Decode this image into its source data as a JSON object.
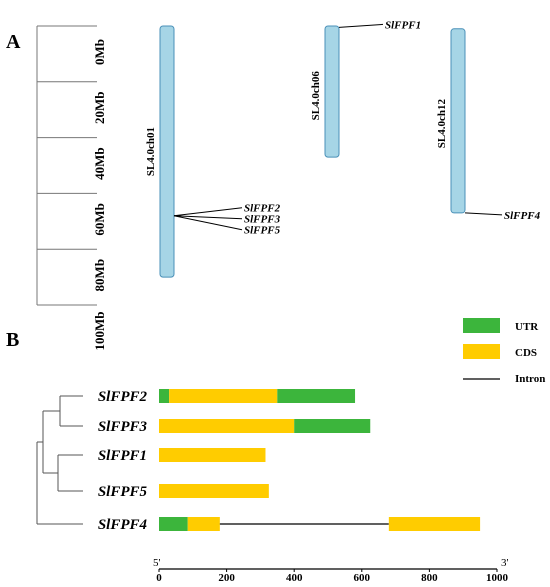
{
  "panel_a": {
    "label": "A",
    "scale": {
      "max_mb": 100,
      "ticks": [
        {
          "value": 0,
          "label": "0Mb"
        },
        {
          "value": 20,
          "label": "20Mb"
        },
        {
          "value": 40,
          "label": "40Mb"
        },
        {
          "value": 60,
          "label": "60Mb"
        },
        {
          "value": 80,
          "label": "80Mb"
        },
        {
          "value": 100,
          "label": "100Mb"
        }
      ]
    },
    "chromosome_color": "#a6d5e6",
    "chromosome_stroke": "#4a90b8",
    "chromosomes": [
      {
        "id": "ch01",
        "label": "SL4.0ch01",
        "length_mb": 90,
        "genes": [
          {
            "name": "SlFPF2",
            "position_mb": 68
          },
          {
            "name": "SlFPF3",
            "position_mb": 68
          },
          {
            "name": "SlFPF5",
            "position_mb": 68
          }
        ]
      },
      {
        "id": "ch06",
        "label": "SL4.0ch06",
        "length_mb": 47,
        "genes": [
          {
            "name": "SlFPF1",
            "position_mb": 0.5
          }
        ]
      },
      {
        "id": "ch12",
        "label": "SL4.0ch12",
        "length_mb": 66,
        "genes": [
          {
            "name": "SlFPF4",
            "position_mb": 66
          }
        ]
      }
    ]
  },
  "panel_b": {
    "label": "B",
    "legend": [
      {
        "key": "utr",
        "label": "UTR",
        "color": "#3cb53c"
      },
      {
        "key": "cds",
        "label": "CDS",
        "color": "#ffcc00"
      },
      {
        "key": "intron",
        "label": "Intron",
        "color": "#000000"
      }
    ],
    "axis": {
      "min": 0,
      "max": 1000,
      "ticks": [
        0,
        200,
        400,
        600,
        800,
        1000
      ],
      "start_label": "5'",
      "end_label": "3'"
    },
    "genes": [
      {
        "name": "SlFPF2",
        "segments": [
          {
            "type": "utr",
            "start": 0,
            "end": 30
          },
          {
            "type": "cds",
            "start": 30,
            "end": 350
          },
          {
            "type": "utr",
            "start": 350,
            "end": 580
          }
        ]
      },
      {
        "name": "SlFPF3",
        "segments": [
          {
            "type": "cds",
            "start": 0,
            "end": 400
          },
          {
            "type": "utr",
            "start": 400,
            "end": 625
          }
        ]
      },
      {
        "name": "SlFPF1",
        "segments": [
          {
            "type": "cds",
            "start": 0,
            "end": 315
          }
        ]
      },
      {
        "name": "SlFPF5",
        "segments": [
          {
            "type": "cds",
            "start": 0,
            "end": 325
          }
        ]
      },
      {
        "name": "SlFPF4",
        "segments": [
          {
            "type": "utr",
            "start": 0,
            "end": 85
          },
          {
            "type": "cds",
            "start": 85,
            "end": 180
          },
          {
            "type": "intron",
            "start": 180,
            "end": 680
          },
          {
            "type": "cds",
            "start": 680,
            "end": 950
          }
        ]
      }
    ]
  }
}
